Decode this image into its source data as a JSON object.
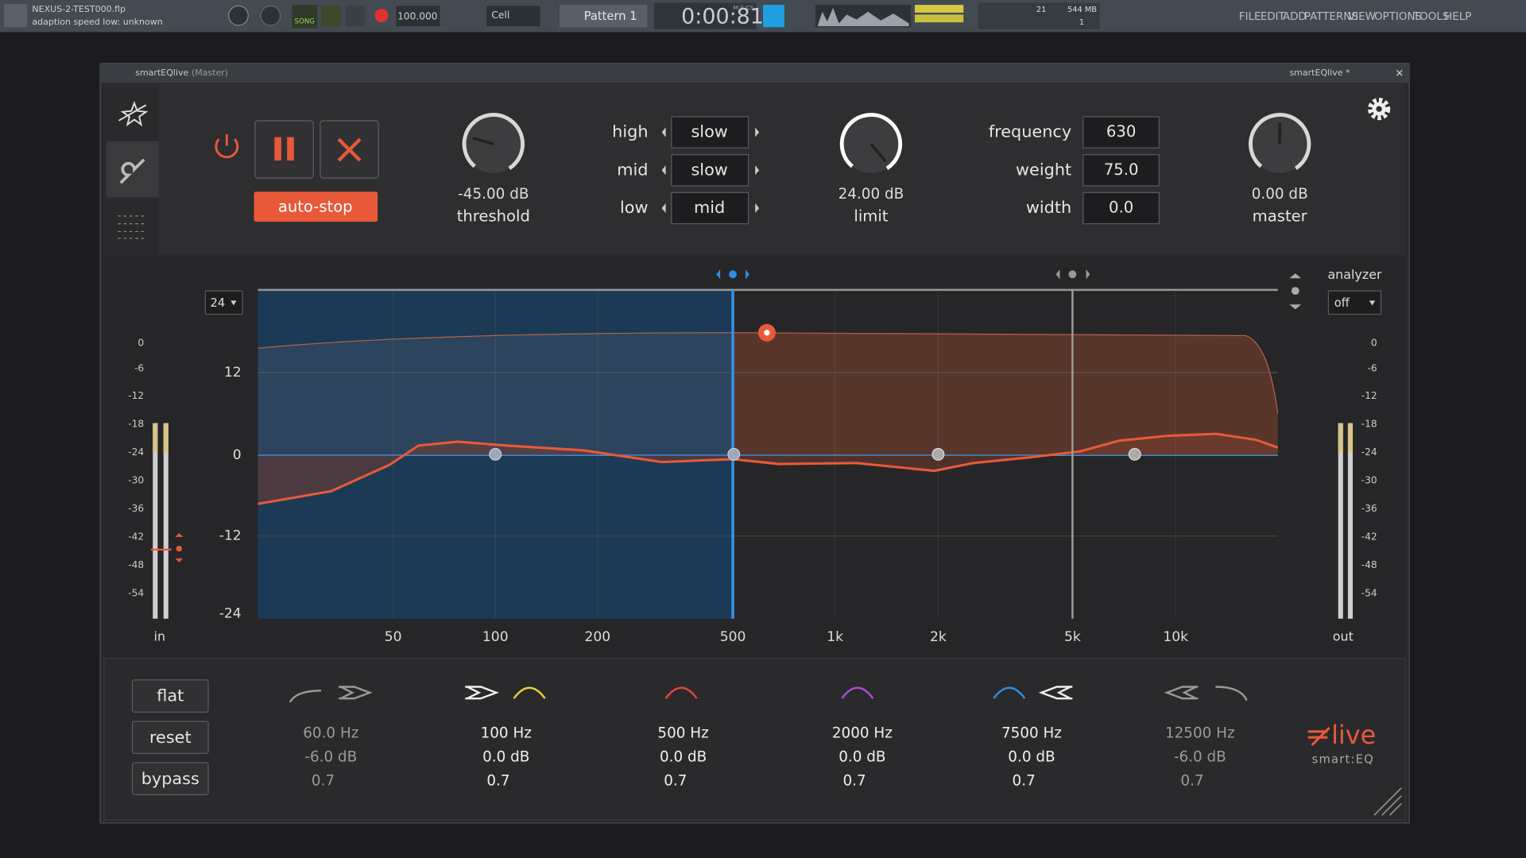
{
  "daw_toolbar": {
    "project": "NEXUS-2-TEST000.flp",
    "hint": "adaption speed low: unknown",
    "song_label": "SONG",
    "tempo": "100.000",
    "snap": "Cell",
    "pattern": "Pattern 1",
    "time": "0:00:81",
    "time_format": "M:S:CS",
    "cpu": "21",
    "memory": "544 MB",
    "polyphony": "1",
    "menu": [
      "FILE",
      "EDIT",
      "ADD",
      "PATTERNS",
      "VIEW",
      "OPTIONS",
      "TOOLS",
      "HELP"
    ]
  },
  "plugin_window": {
    "title": "smartEQlive",
    "subtitle": "(Master)",
    "preset": "smartEQlive *"
  },
  "controls": {
    "auto_stop": "auto-stop",
    "threshold": {
      "value": "-45.00 dB",
      "label": "threshold"
    },
    "adaption": [
      {
        "label": "high",
        "value": "slow"
      },
      {
        "label": "mid",
        "value": "slow"
      },
      {
        "label": "low",
        "value": "mid"
      }
    ],
    "limit": {
      "value": "24.00 dB",
      "label": "limit"
    },
    "fields": [
      {
        "label": "frequency",
        "value": "630"
      },
      {
        "label": "weight",
        "value": "75.0"
      },
      {
        "label": "width",
        "value": "0.0"
      }
    ],
    "master": {
      "value": "0.00 dB",
      "label": "master"
    }
  },
  "graph": {
    "range": "24",
    "analyzer_label": "analyzer",
    "analyzer_value": "off",
    "meter_scale": [
      "0",
      "-6",
      "-12",
      "-18",
      "-24",
      "-30",
      "-36",
      "-42",
      "-48",
      "-54"
    ],
    "gain_ticks": [
      "12",
      "0",
      "-12",
      "-24"
    ],
    "freq_ticks": [
      "50",
      "100",
      "200",
      "500",
      "1k",
      "2k",
      "5k",
      "10k"
    ],
    "in_label": "in",
    "out_label": "out"
  },
  "bottom": {
    "buttons": [
      "flat",
      "reset",
      "bypass"
    ],
    "bands": [
      {
        "frequency": "60.0 Hz",
        "gain": "-6.0 dB",
        "q": "0.7"
      },
      {
        "frequency": "100 Hz",
        "gain": "0.0 dB",
        "q": "0.7"
      },
      {
        "frequency": "500 Hz",
        "gain": "0.0 dB",
        "q": "0.7"
      },
      {
        "frequency": "2000 Hz",
        "gain": "0.0 dB",
        "q": "0.7"
      },
      {
        "frequency": "7500 Hz",
        "gain": "0.0 dB",
        "q": "0.7"
      },
      {
        "frequency": "12500 Hz",
        "gain": "-6.0 dB",
        "q": "0.7"
      }
    ]
  },
  "logo": {
    "brand": "live",
    "product": "smart:EQ"
  }
}
